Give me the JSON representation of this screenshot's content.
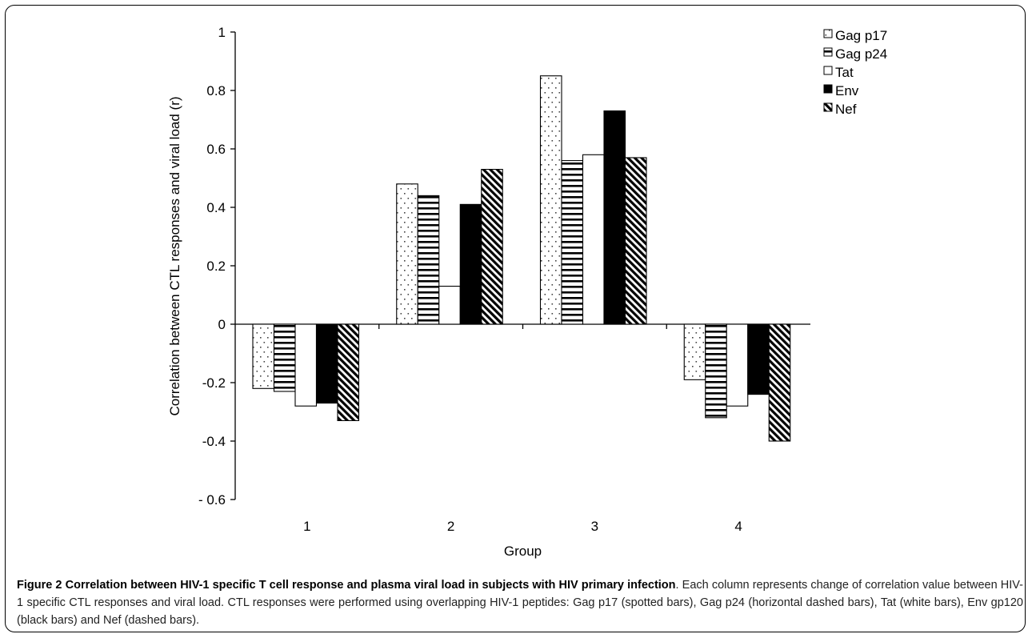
{
  "chart_data": {
    "type": "bar",
    "categories": [
      "1",
      "2",
      "3",
      "4"
    ],
    "series": [
      {
        "name": "Gag p17",
        "pattern": "dots",
        "values": [
          -0.22,
          0.48,
          0.85,
          -0.19
        ]
      },
      {
        "name": "Gag p24",
        "pattern": "hlines",
        "values": [
          -0.23,
          0.44,
          0.56,
          -0.32
        ]
      },
      {
        "name": "Tat",
        "pattern": "white",
        "values": [
          -0.28,
          0.13,
          0.58,
          -0.28
        ]
      },
      {
        "name": "Env",
        "pattern": "black",
        "values": [
          -0.27,
          0.41,
          0.73,
          -0.24
        ]
      },
      {
        "name": "Nef",
        "pattern": "diag",
        "values": [
          -0.33,
          0.53,
          0.57,
          -0.4
        ]
      }
    ],
    "xlabel": "Group",
    "ylabel": "Correlation between CTL responses and viral load (r)",
    "ylim": [
      -0.6,
      1
    ],
    "yticks": [
      1,
      0.8,
      0.6,
      0.4,
      0.2,
      0,
      -0.2,
      -0.4,
      -0.6
    ],
    "ytick_labels": [
      "1",
      "0.8",
      "0.6",
      "0.4",
      "0.2",
      "0",
      "-0.2",
      "-0.4",
      "- 0.6"
    ],
    "grid": false,
    "legend_position": "top-right"
  },
  "caption": {
    "bold": "Figure 2 Correlation between HIV-1 specific T cell response and plasma viral load in subjects with HIV primary infection",
    "text": ". Each column represents change of correlation value between HIV-1 specific CTL responses and viral load. CTL responses were performed using overlapping HIV-1 peptides: Gag p17 (spotted bars), Gag p24 (horizontal dashed bars), Tat (white bars), Env gp120 (black bars) and Nef (dashed bars)."
  }
}
